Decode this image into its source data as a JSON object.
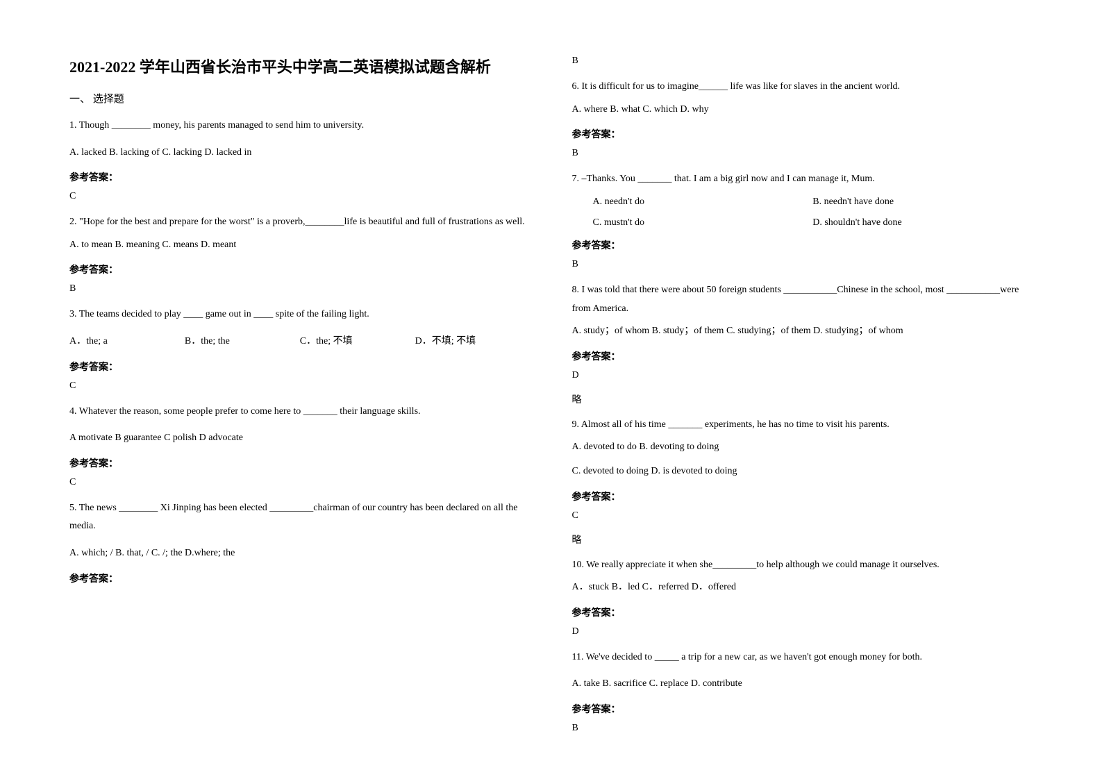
{
  "title": "2021-2022 学年山西省长治市平头中学高二英语模拟试题含解析",
  "section_heading": "一、 选择题",
  "answer_label": "参考答案：",
  "note_omit": "略",
  "col1": {
    "q1": {
      "text": "1. Though ________ money, his parents managed to send him to university.",
      "options": "A. lacked    B. lacking of    C. lacking     D. lacked in",
      "answer": "C"
    },
    "q2": {
      "text": "2. \"Hope for the best and prepare for the worst\" is a proverb,________life is beautiful and full of frustrations as well.",
      "options": "   A. to mean     B. meaning   C. means     D. meant",
      "answer": "B"
    },
    "q3": {
      "text": "3. The teams decided to play ____ game out in ____ spite of the failing light.",
      "optA": "A．the; a",
      "optB": "B．the; the",
      "optC": "C．the; 不填",
      "optD": "D．不填; 不填",
      "answer": "C"
    },
    "q4": {
      "text": "4. Whatever the reason, some people prefer to come here to _______ their language skills.",
      "options": "A motivate     B guarantee    C polish     D advocate",
      "answer": "C"
    },
    "q5": {
      "text": "5. The news ________ Xi Jinping has been elected _________chairman of our country has been declared on all the media.",
      "options": "A. which; /    B. that, /    C. /; the    D.where; the"
    }
  },
  "col2": {
    "q5_answer": "B",
    "q6": {
      "text": "6. It is difficult for us to imagine______ life was like for slaves in the ancient world.",
      "options": "A. where    B. what     C. which    D. why",
      "answer": "B"
    },
    "q7": {
      "text": "7.          –Thanks. You _______ that. I am a big girl now and I can manage it, Mum.",
      "optA": "A. needn't do",
      "optB": "B. needn't have done",
      "optC": "C. mustn't do",
      "optD": "D. shouldn't have done",
      "answer": "B"
    },
    "q8": {
      "text": "8. I was told that there were about 50 foreign students ___________Chinese in the school, most ___________were from America.",
      "options": "    A. study；of whom  B. study；of them   C. studying；of them   D. studying；of whom",
      "answer": "D"
    },
    "q9": {
      "text": "9. Almost all of his time _______ experiments, he has no time to visit his parents.",
      "opts1": "    A. devoted to do               B. devoting to doing",
      "opts2": "    C. devoted to doing                D. is devoted to doing",
      "answer": "C"
    },
    "q10": {
      "text": "10. We really appreciate it when she_________to help although we could manage it ourselves.",
      "options": "     A．stuck  B．led C．referred   D．offered",
      "answer": "D"
    },
    "q11": {
      "text": "11. We've decided to _____ a trip for a new car, as we haven't got enough money for both.",
      "options": " A. take     B. sacrifice     C. replace     D. contribute",
      "answer": "B"
    }
  }
}
